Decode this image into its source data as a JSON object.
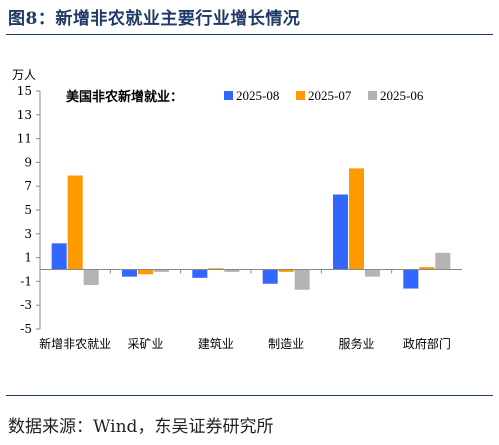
{
  "figure": {
    "title": "图8：新增非农就业主要行业增长情况",
    "source": "数据来源：Wind，东吴证券研究所"
  },
  "colors": {
    "title": "#1f3a66",
    "series": [
      "#3366ff",
      "#ff9900",
      "#b3b3b3"
    ]
  },
  "chart_data": {
    "type": "bar",
    "title": "美国非农新增就业：",
    "ylabel": "万人",
    "xlabel": "",
    "ylim": [
      -5,
      15
    ],
    "yticks": [
      -5,
      -3,
      -1,
      1,
      3,
      5,
      7,
      9,
      11,
      13,
      15
    ],
    "grid": false,
    "legend_position": "top",
    "categories": [
      "新增非农就业",
      "采矿业",
      "建筑业",
      "制造业",
      "服务业",
      "政府部门"
    ],
    "series": [
      {
        "name": "2025-08",
        "values": [
          2.2,
          -0.6,
          -0.7,
          -1.2,
          6.3,
          -1.6
        ]
      },
      {
        "name": "2025-07",
        "values": [
          7.9,
          -0.4,
          0.1,
          -0.2,
          8.5,
          0.2
        ]
      },
      {
        "name": "2025-06",
        "values": [
          -1.3,
          -0.2,
          -0.2,
          -1.7,
          -0.6,
          1.4
        ]
      }
    ]
  }
}
